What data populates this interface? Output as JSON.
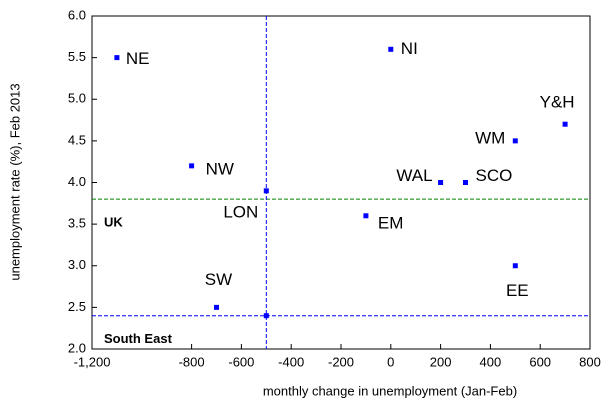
{
  "chart_data": {
    "type": "scatter",
    "x_label": "monthly change in unemployment (Jan-Feb)",
    "y_label": "unemployment rate (%), Feb 2013",
    "labels": [
      "NE",
      "NW",
      "SW",
      "LON",
      null,
      "NI",
      "EM",
      "WAL",
      "SCO",
      "WM",
      "Y&H",
      "EE"
    ],
    "x": [
      -1100,
      -800,
      -700,
      -500,
      -500,
      0,
      -100,
      200,
      300,
      500,
      700,
      500
    ],
    "values": [
      5.5,
      4.2,
      2.5,
      3.9,
      2.4,
      5.6,
      3.6,
      4.0,
      4.0,
      4.5,
      4.7,
      3.0
    ],
    "color": "#0000ff",
    "reference_lines": [
      {
        "axis": "y",
        "value": 3.8,
        "label": "UK",
        "color": "#008000"
      },
      {
        "axis": "y",
        "value": 2.4,
        "label": "South East",
        "color": "#0000ff"
      },
      {
        "axis": "x",
        "value": -500,
        "color": "#0000ff"
      }
    ],
    "xlim": [
      -1200,
      800
    ],
    "xticks": [
      {
        "value": -1200,
        "label": "-1,200"
      },
      -800,
      -600,
      -400,
      -200,
      0,
      200,
      400,
      600,
      800
    ],
    "ylim": [
      2.0,
      6.0
    ],
    "yticks": [
      {
        "value": 2.0,
        "label": "2.0"
      },
      2.5,
      {
        "value": 3.0,
        "label": "3.0"
      },
      3.5,
      {
        "value": 4.0,
        "label": "4.0"
      },
      4.5,
      {
        "value": 5.0,
        "label": "5.0"
      },
      5.5,
      {
        "value": 6.0,
        "label": "6.0"
      }
    ]
  }
}
